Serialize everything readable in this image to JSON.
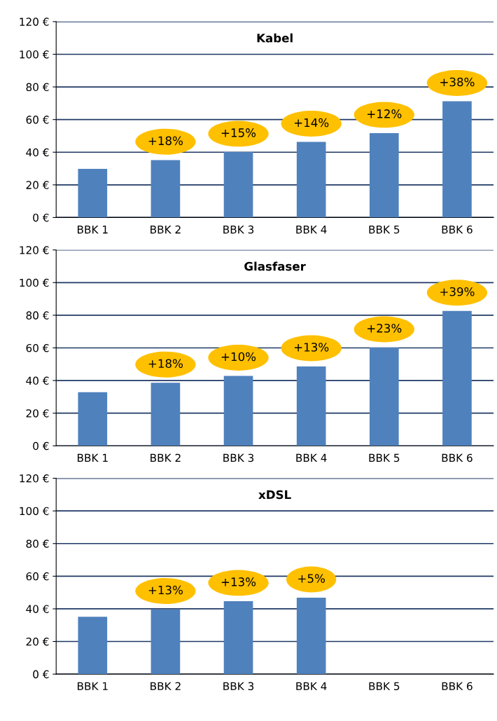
{
  "chart_data": [
    {
      "type": "bar",
      "title": "Kabel",
      "categories": [
        "BBK 1",
        "BBK 2",
        "BBK 3",
        "BBK 4",
        "BBK 5",
        "BBK 6"
      ],
      "values": [
        29.8,
        35.2,
        40.1,
        46.3,
        51.7,
        71.2
      ],
      "color": "#4f81bd",
      "annotations": [
        {
          "text": "+18%",
          "x": "BBK 2",
          "y": 35.2
        },
        {
          "text": "+15%",
          "x": "BBK 3",
          "y": 40.1
        },
        {
          "text": "+14%",
          "x": "BBK 4",
          "y": 46.3
        },
        {
          "text": "+12%",
          "x": "BBK 5",
          "y": 51.7
        },
        {
          "text": "+38%",
          "x": "BBK 6",
          "y": 71.2
        }
      ],
      "ylim": [
        0,
        120
      ],
      "yticks": [
        {
          "value": 0,
          "label": "0 €"
        },
        {
          "value": 20,
          "label": "20 €"
        },
        {
          "value": 40,
          "label": "40 €"
        },
        {
          "value": 60,
          "label": "60 €"
        },
        {
          "value": 80,
          "label": "80 €"
        },
        {
          "value": 100,
          "label": "100 €"
        },
        {
          "value": 120,
          "label": "120 €"
        }
      ],
      "grid": "y"
    },
    {
      "type": "bar",
      "title": "Glasfaser",
      "categories": [
        "BBK 1",
        "BBK 2",
        "BBK 3",
        "BBK 4",
        "BBK 5",
        "BBK 6"
      ],
      "values": [
        32.8,
        38.6,
        42.8,
        48.6,
        60.2,
        82.6
      ],
      "color": "#4f81bd",
      "annotations": [
        {
          "text": "+18%",
          "x": "BBK 2",
          "y": 38.6
        },
        {
          "text": "+10%",
          "x": "BBK 3",
          "y": 42.8
        },
        {
          "text": "+13%",
          "x": "BBK 4",
          "y": 48.6
        },
        {
          "text": "+23%",
          "x": "BBK 5",
          "y": 60.2
        },
        {
          "text": "+39%",
          "x": "BBK 6",
          "y": 82.6
        }
      ],
      "ylim": [
        0,
        120
      ],
      "yticks": [
        {
          "value": 0,
          "label": "0 €"
        },
        {
          "value": 20,
          "label": "20 €"
        },
        {
          "value": 40,
          "label": "40 €"
        },
        {
          "value": 60,
          "label": "60 €"
        },
        {
          "value": 80,
          "label": "80 €"
        },
        {
          "value": 100,
          "label": "100 €"
        },
        {
          "value": 120,
          "label": "120 €"
        }
      ],
      "grid": "y"
    },
    {
      "type": "bar",
      "title": "xDSL",
      "categories": [
        "BBK 1",
        "BBK 2",
        "BBK 3",
        "BBK 4",
        "BBK 5",
        "BBK 6"
      ],
      "values": [
        35.1,
        39.7,
        44.7,
        46.8,
        null,
        null
      ],
      "color": "#4f81bd",
      "annotations": [
        {
          "text": "+13%",
          "x": "BBK 2",
          "y": 39.7
        },
        {
          "text": "+13%",
          "x": "BBK 3",
          "y": 44.7
        },
        {
          "text": "+5%",
          "x": "BBK 4",
          "y": 46.8
        }
      ],
      "ylim": [
        0,
        120
      ],
      "yticks": [
        {
          "value": 0,
          "label": "0 €"
        },
        {
          "value": 20,
          "label": "20 €"
        },
        {
          "value": 40,
          "label": "40 €"
        },
        {
          "value": 60,
          "label": "60 €"
        },
        {
          "value": 80,
          "label": "80 €"
        },
        {
          "value": 100,
          "label": "100 €"
        },
        {
          "value": 120,
          "label": "120 €"
        }
      ],
      "grid": "y"
    }
  ]
}
